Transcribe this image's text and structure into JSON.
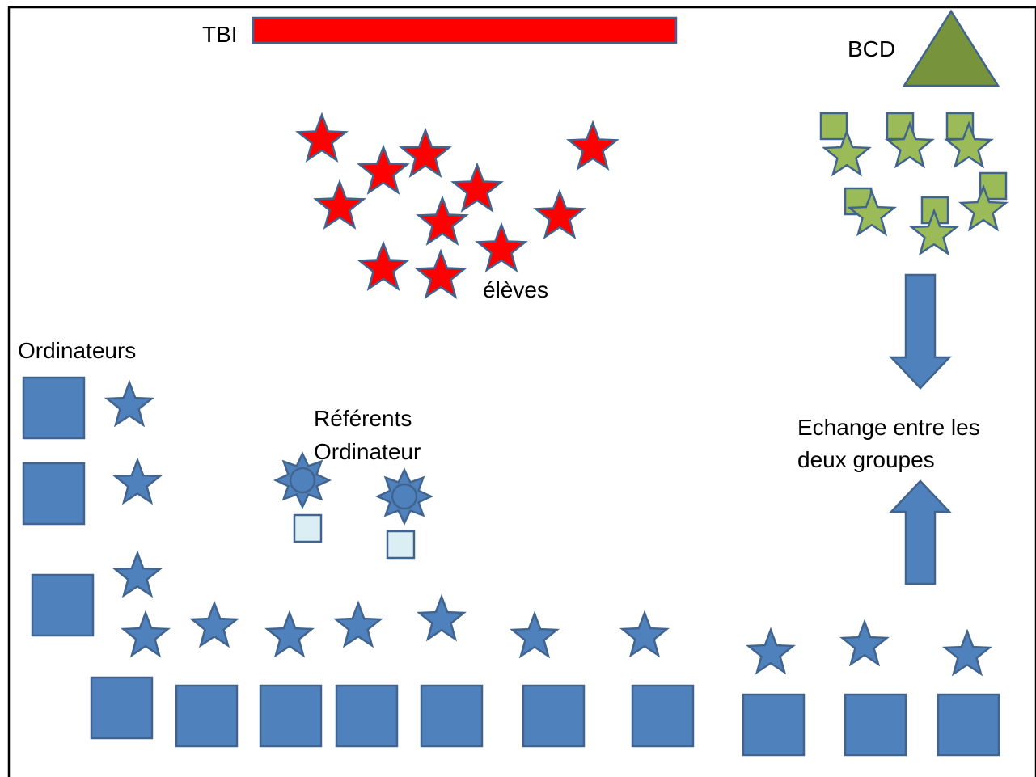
{
  "labels": {
    "tbi": "TBI",
    "bcd": "BCD",
    "eleves": "élèves",
    "ordinateurs": "Ordinateurs",
    "referents_line1": "Référents",
    "referents_line2": "Ordinateur",
    "echange_line1": "Echange entre les",
    "echange_line2": "deux groupes"
  },
  "colors": {
    "outline": "#41648f",
    "blue": "#4f81bd",
    "red": "#ff0000",
    "green_fill": "#9bbb59",
    "olive": "#77933c",
    "light_blue": "#dbeef4",
    "border": "#000000"
  },
  "icons": {
    "student": "star-icon",
    "computer": "square-icon",
    "referent": "sun-icon",
    "bcd": "triangle-icon",
    "exchange": "arrow-icon"
  }
}
